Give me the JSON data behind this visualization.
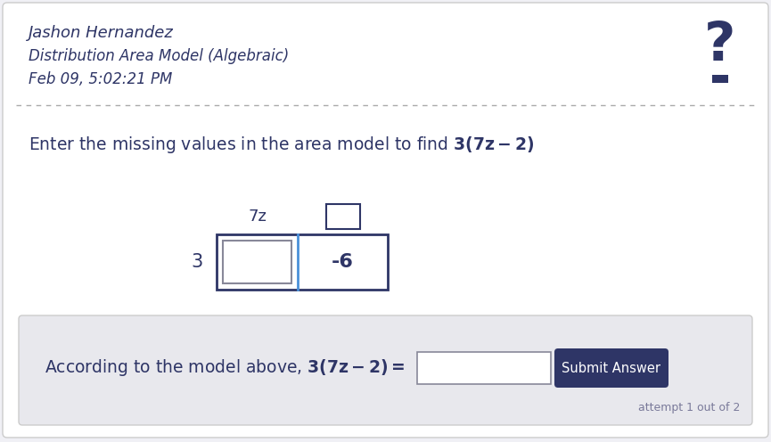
{
  "bg_color": "#f0f0f5",
  "white_bg": "#ffffff",
  "header_name": "Jashon Hernandez",
  "header_subtitle": "Distribution Area Model (Algebraic)",
  "header_date": "Feb 09, 5:02:21 PM",
  "label_3": "3",
  "label_7z": "7z",
  "label_neg6": "-6",
  "submit_text": "Submit Answer",
  "attempt_text": "attempt 1 out of 2",
  "dark_text": "#2e3566",
  "medium_text": "#7a7a9a",
  "blue_line": "#4a90d9",
  "box_border": "#888899",
  "input_box_border": "#aaaaaa",
  "submit_btn_bg": "#2e3566",
  "submit_btn_text": "#ffffff",
  "footer_bg": "#e8e8ed",
  "question_mark_color": "#2e3566",
  "dotted_line_color": "#aaaaaa",
  "separator_color": "#cccccc"
}
